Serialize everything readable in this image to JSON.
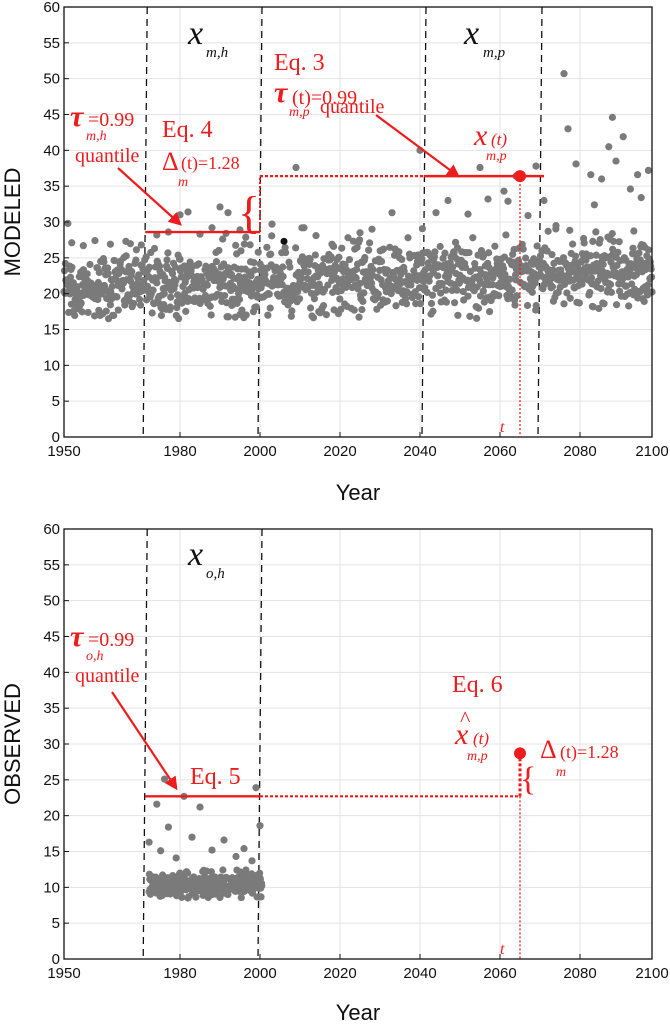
{
  "chart_data": [
    {
      "type": "scatter",
      "xlabel": "Year",
      "ylabel": "MODELED",
      "xlim": [
        1950,
        2100
      ],
      "ylim": [
        0,
        60
      ],
      "x_ticks": [
        1950,
        1980,
        2000,
        2020,
        2040,
        2060,
        2080,
        2100
      ],
      "y_ticks": [
        0,
        5,
        10,
        15,
        20,
        25,
        30,
        35,
        40,
        45,
        50,
        55,
        60
      ],
      "grid": true,
      "point_color": "#7a7a7a",
      "highlight_color": "#ee1c1c",
      "periods": [
        {
          "label_sym": "x",
          "label_sub": "m,h",
          "start": 1971,
          "end": 2000
        },
        {
          "label_sym": "x",
          "label_sub": "m,p",
          "start": 2041,
          "end": 2070
        }
      ],
      "series": [
        {
          "values": [
            [
              1951,
              29.8
            ],
            [
              1952,
              27.1
            ],
            [
              1955,
              26.7
            ],
            [
              1958,
              27.4
            ],
            [
              1962,
              26.9
            ],
            [
              1966,
              27.3
            ],
            [
              1970,
              26.8
            ],
            [
              1974,
              28.2
            ],
            [
              1977,
              28.6
            ],
            [
              1980,
              31.0
            ],
            [
              1982,
              31.4
            ],
            [
              1985,
              28.3
            ],
            [
              1988,
              29.2
            ],
            [
              1990,
              32.1
            ],
            [
              1992,
              31.3
            ],
            [
              1995,
              28.9
            ],
            [
              2003,
              29.7
            ],
            [
              2006,
              27.3
            ],
            [
              2009,
              37.6
            ],
            [
              2011,
              29.2
            ],
            [
              2014,
              28.1
            ],
            [
              2018,
              26.9
            ],
            [
              2022,
              27.8
            ],
            [
              2025,
              28.5
            ],
            [
              2028,
              29.0
            ],
            [
              2033,
              31.3
            ],
            [
              2037,
              27.8
            ],
            [
              2040,
              40.0
            ],
            [
              2044,
              31.3
            ],
            [
              2047,
              33.0
            ],
            [
              2052,
              31.1
            ],
            [
              2055,
              37.6
            ],
            [
              2057,
              33.2
            ],
            [
              2061,
              34.3
            ],
            [
              2062,
              32.9
            ],
            [
              2064,
              36.4
            ],
            [
              2067,
              30.9
            ],
            [
              2069,
              37.8
            ],
            [
              2071,
              33.0
            ],
            [
              2074,
              29.5
            ],
            [
              2076,
              50.7
            ],
            [
              2077,
              43.0
            ],
            [
              2079,
              38.1
            ],
            [
              2081,
              27.7
            ],
            [
              2083,
              36.6
            ],
            [
              2084,
              32.4
            ],
            [
              2086,
              36.0
            ],
            [
              2088,
              40.5
            ],
            [
              2089,
              44.6
            ],
            [
              2090,
              38.5
            ],
            [
              2092,
              41.9
            ],
            [
              2094,
              34.6
            ],
            [
              2096,
              36.6
            ],
            [
              2097,
              33.4
            ],
            [
              2099,
              37.2
            ]
          ]
        }
      ],
      "background_point_cloud": {
        "baseline": 21.0,
        "trend_per_year": 0.013,
        "spread": 2.3,
        "min": 16.5,
        "years_per_step": 0.12
      },
      "highlight_points": [
        {
          "x": 2006,
          "y": 27.3,
          "color": "#111111"
        }
      ],
      "annotations": {
        "eq3": {
          "eq": "Eq. 3",
          "tau_value": "(t)=0.99",
          "sub": "m,p",
          "word": "quantile"
        },
        "eq4": {
          "eq": "Eq. 4",
          "delta_value": "(t)=1.28",
          "sub": "m"
        },
        "tau_hist": {
          "value": "=0.99",
          "sub": "m,h",
          "word": "quantile"
        },
        "xt": {
          "sym": "x",
          "sup": "(t)",
          "sub": "m,p"
        },
        "t": "t",
        "hist_quantile_y": 28.6,
        "proj_quantile_y": 36.4,
        "target_year": 2065
      }
    },
    {
      "type": "scatter",
      "xlabel": "Year",
      "ylabel": "OBSERVED",
      "xlim": [
        1950,
        2100
      ],
      "ylim": [
        0,
        60
      ],
      "x_ticks": [
        1950,
        1980,
        2000,
        2020,
        2040,
        2060,
        2080,
        2100
      ],
      "y_ticks": [
        0,
        5,
        10,
        15,
        20,
        25,
        30,
        35,
        40,
        45,
        50,
        55,
        60
      ],
      "grid": true,
      "point_color": "#7a7a7a",
      "highlight_color": "#ee1c1c",
      "periods": [
        {
          "label_sym": "x",
          "label_sub": "o,h",
          "start": 1971,
          "end": 2000
        }
      ],
      "series": [
        {
          "values": [
            [
              1972,
              16.3
            ],
            [
              1974,
              21.6
            ],
            [
              1975,
              15.1
            ],
            [
              1976,
              25.1
            ],
            [
              1977,
              18.4
            ],
            [
              1979,
              14.1
            ],
            [
              1981,
              22.7
            ],
            [
              1983,
              17.0
            ],
            [
              1985,
              21.2
            ],
            [
              1988,
              15.2
            ],
            [
              1991,
              16.6
            ],
            [
              1994,
              14.3
            ],
            [
              1996,
              15.4
            ],
            [
              1998,
              13.7
            ],
            [
              1999,
              23.9
            ],
            [
              2000,
              18.6
            ]
          ]
        }
      ],
      "background_point_cloud": {
        "baseline": 10.3,
        "trend_per_year": 0.0,
        "spread": 0.9,
        "min": 8.5,
        "years_per_step": 0.09
      },
      "annotations": {
        "eq5": {
          "eq": "Eq. 5"
        },
        "eq6": {
          "eq": "Eq. 6",
          "hat": "^",
          "sym": "x",
          "sup": "(t)",
          "sub": "m,p"
        },
        "tau_hist": {
          "value": "=0.99",
          "sub": "o,h",
          "word": "quantile"
        },
        "delta": {
          "value": "(t)=1.28",
          "sub": "m"
        },
        "t": "t",
        "hist_quantile_y": 22.7,
        "projected_value_y": 28.7,
        "target_year": 2065
      }
    }
  ]
}
